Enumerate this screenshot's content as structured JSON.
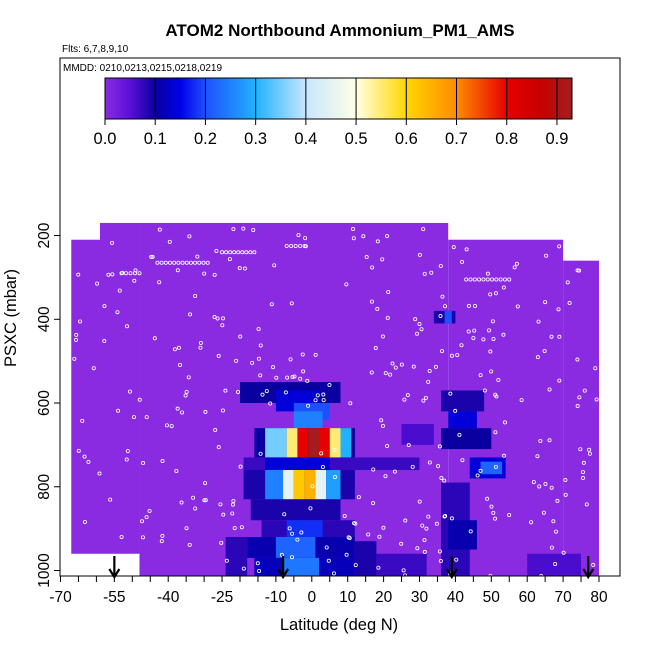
{
  "chart_data": {
    "type": "heatmap",
    "title": "ATOM2 Northbound Ammonium_PM1_AMS",
    "subtitle_flights": "Flts: 6,7,8,9,10",
    "subtitle_dates": "MMDD: 0210,0213,0215,0218,0219",
    "xlabel": "Latitude (deg N)",
    "ylabel": "PSXC (mbar)",
    "xlim": [
      -70,
      85
    ],
    "ylim": [
      1020,
      110
    ],
    "x_ticks": [
      -70,
      -55,
      -40,
      -25,
      -10,
      0,
      10,
      20,
      30,
      40,
      50,
      60,
      70,
      80
    ],
    "x_tick_labels": [
      "-70",
      "-55",
      "-40",
      "-25",
      "-10",
      "0",
      "10",
      "20",
      "30",
      "40",
      "50",
      "60",
      "70",
      "80"
    ],
    "y_ticks": [
      200,
      400,
      600,
      800,
      1000
    ],
    "y_tick_labels": [
      "200",
      "400",
      "600",
      "800",
      "1000"
    ],
    "colorbar": {
      "min": 0.0,
      "max": 0.93,
      "ticks": [
        0.0,
        0.1,
        0.2,
        0.3,
        0.4,
        0.5,
        0.6,
        0.7,
        0.8,
        0.9
      ],
      "tick_labels": [
        "0.0",
        "0.1",
        "0.2",
        "0.3",
        "0.4",
        "0.5",
        "0.6",
        "0.7",
        "0.8",
        "0.9"
      ],
      "stops": [
        {
          "v": 0.0,
          "c": "#8a2be2"
        },
        {
          "v": 0.05,
          "c": "#5a10d8"
        },
        {
          "v": 0.1,
          "c": "#0a00a0"
        },
        {
          "v": 0.15,
          "c": "#0000e6"
        },
        {
          "v": 0.2,
          "c": "#1e50ff"
        },
        {
          "v": 0.3,
          "c": "#20b2ff"
        },
        {
          "v": 0.4,
          "c": "#c8e6ff"
        },
        {
          "v": 0.5,
          "c": "#ffffe6"
        },
        {
          "v": 0.6,
          "c": "#ffd700"
        },
        {
          "v": 0.7,
          "c": "#ff8c00"
        },
        {
          "v": 0.8,
          "c": "#e60000"
        },
        {
          "v": 0.87,
          "c": "#c80000"
        },
        {
          "v": 0.93,
          "c": "#a02020"
        }
      ]
    },
    "background_color": "#8a2be2",
    "data_envelope": [
      {
        "lat": [
          -67,
          -59
        ],
        "pmin": 210,
        "pmax": 960
      },
      {
        "lat": [
          -59,
          -48
        ],
        "pmin": 170,
        "pmax": 960
      },
      {
        "lat": [
          -48,
          38
        ],
        "pmin": 170,
        "pmax": 1020
      },
      {
        "lat": [
          38,
          70
        ],
        "pmin": 210,
        "pmax": 1020
      },
      {
        "lat": [
          70,
          80
        ],
        "pmin": 260,
        "pmax": 1020
      }
    ],
    "cells": [
      {
        "lat": [
          -20,
          8
        ],
        "p": [
          550,
          600
        ],
        "v": 0.1
      },
      {
        "lat": [
          -10,
          2
        ],
        "p": [
          570,
          620
        ],
        "v": 0.14
      },
      {
        "lat": [
          -5,
          5
        ],
        "p": [
          600,
          640
        ],
        "v": 0.2
      },
      {
        "lat": [
          -5,
          3
        ],
        "p": [
          620,
          660
        ],
        "v": 0.25
      },
      {
        "lat": [
          -16,
          12
        ],
        "p": [
          660,
          730
        ],
        "v": 0.1
      },
      {
        "lat": [
          -13,
          -7
        ],
        "p": [
          660,
          730
        ],
        "v": 0.35
      },
      {
        "lat": [
          -7,
          -4
        ],
        "p": [
          660,
          730
        ],
        "v": 0.55
      },
      {
        "lat": [
          -4,
          -1
        ],
        "p": [
          660,
          730
        ],
        "v": 0.8
      },
      {
        "lat": [
          -1,
          2
        ],
        "p": [
          660,
          730
        ],
        "v": 0.92
      },
      {
        "lat": [
          2,
          5
        ],
        "p": [
          660,
          730
        ],
        "v": 0.8
      },
      {
        "lat": [
          5,
          8
        ],
        "p": [
          660,
          730
        ],
        "v": 0.55
      },
      {
        "lat": [
          8,
          11
        ],
        "p": [
          660,
          730
        ],
        "v": 0.3
      },
      {
        "lat": [
          -19,
          30
        ],
        "p": [
          730,
          760
        ],
        "v": 0.07
      },
      {
        "lat": [
          -13,
          5
        ],
        "p": [
          730,
          760
        ],
        "v": 0.14
      },
      {
        "lat": [
          -19,
          12
        ],
        "p": [
          760,
          830
        ],
        "v": 0.09
      },
      {
        "lat": [
          -13,
          -8
        ],
        "p": [
          760,
          830
        ],
        "v": 0.25
      },
      {
        "lat": [
          -8,
          -5
        ],
        "p": [
          760,
          830
        ],
        "v": 0.45
      },
      {
        "lat": [
          -5,
          -2
        ],
        "p": [
          760,
          830
        ],
        "v": 0.62
      },
      {
        "lat": [
          -2,
          1
        ],
        "p": [
          760,
          830
        ],
        "v": 0.65
      },
      {
        "lat": [
          1,
          4
        ],
        "p": [
          760,
          830
        ],
        "v": 0.45
      },
      {
        "lat": [
          4,
          8
        ],
        "p": [
          760,
          830
        ],
        "v": 0.28
      },
      {
        "lat": [
          -17,
          8
        ],
        "p": [
          830,
          880
        ],
        "v": 0.09
      },
      {
        "lat": [
          -14,
          12
        ],
        "p": [
          880,
          920
        ],
        "v": 0.08
      },
      {
        "lat": [
          -7,
          3
        ],
        "p": [
          880,
          920
        ],
        "v": 0.18
      },
      {
        "lat": [
          -18,
          12
        ],
        "p": [
          920,
          970
        ],
        "v": 0.11
      },
      {
        "lat": [
          -10,
          1
        ],
        "p": [
          920,
          970
        ],
        "v": 0.22
      },
      {
        "lat": [
          -16,
          12
        ],
        "p": [
          970,
          1020
        ],
        "v": 0.12
      },
      {
        "lat": [
          -8,
          2
        ],
        "p": [
          970,
          1020
        ],
        "v": 0.24
      },
      {
        "lat": [
          -24,
          -18
        ],
        "p": [
          920,
          1020
        ],
        "v": 0.08
      },
      {
        "lat": [
          12,
          18
        ],
        "p": [
          930,
          1020
        ],
        "v": 0.09
      },
      {
        "lat": [
          18,
          32
        ],
        "p": [
          960,
          1020
        ],
        "v": 0.07
      },
      {
        "lat": [
          36,
          48
        ],
        "p": [
          570,
          620
        ],
        "v": 0.09
      },
      {
        "lat": [
          38,
          46
        ],
        "p": [
          620,
          660
        ],
        "v": 0.14
      },
      {
        "lat": [
          36,
          50
        ],
        "p": [
          660,
          710
        ],
        "v": 0.1
      },
      {
        "lat": [
          44,
          54
        ],
        "p": [
          730,
          780
        ],
        "v": 0.14
      },
      {
        "lat": [
          47,
          53
        ],
        "p": [
          740,
          770
        ],
        "v": 0.22
      },
      {
        "lat": [
          36,
          44
        ],
        "p": [
          790,
          1020
        ],
        "v": 0.08
      },
      {
        "lat": [
          38,
          46
        ],
        "p": [
          880,
          950
        ],
        "v": 0.11
      },
      {
        "lat": [
          34,
          40
        ],
        "p": [
          380,
          410
        ],
        "v": 0.09
      },
      {
        "lat": [
          37,
          39
        ],
        "p": [
          380,
          410
        ],
        "v": 0.2
      },
      {
        "lat": [
          25,
          34
        ],
        "p": [
          650,
          700
        ],
        "v": 0.06
      },
      {
        "lat": [
          60,
          75
        ],
        "p": [
          960,
          1020
        ],
        "v": 0.06
      }
    ],
    "point_rows": [
      {
        "p": 265,
        "lat_from": -43,
        "lat_to": -29,
        "n": 13
      },
      {
        "p": 240,
        "lat_from": -25,
        "lat_to": -16,
        "n": 9
      },
      {
        "p": 290,
        "lat_from": -53,
        "lat_to": -48,
        "n": 5
      },
      {
        "p": 305,
        "lat_from": 43,
        "lat_to": 55,
        "n": 11
      },
      {
        "p": 225,
        "lat_from": -7,
        "lat_to": -2,
        "n": 5
      }
    ],
    "arrow_lats": [
      -55,
      -8,
      39,
      77
    ]
  }
}
